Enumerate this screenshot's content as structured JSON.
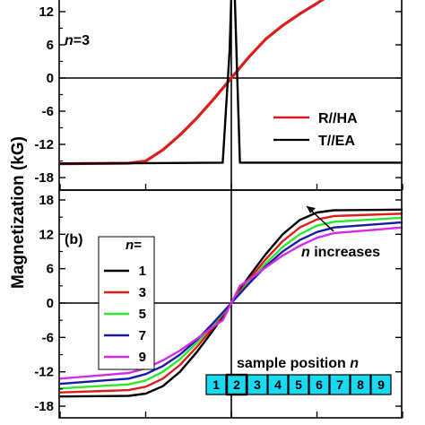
{
  "y_axis_title": "Magnetization  (kG)",
  "top_panel": {
    "label_n": "n",
    "label_eq": "=3",
    "legend": [
      {
        "label": "R//HA",
        "color": "#dd1c1c"
      },
      {
        "label": "T//EA",
        "color": "#000000"
      }
    ]
  },
  "bottom_panel": {
    "label": "(b)",
    "legend_title_n": "n",
    "legend_title_eq": "=",
    "annotation_n": "n",
    "annotation_rest": " increases",
    "sample_position_label": "sample position ",
    "sample_position_n": "n",
    "sample_boxes": [
      "1",
      "2",
      "3",
      "4",
      "5",
      "6",
      "7",
      "8",
      "9"
    ],
    "highlight_box": "2",
    "box_color": "#19d9f0"
  },
  "chart_data": [
    {
      "type": "line",
      "panel": "top",
      "ylabel": "Magnetization  (kG)",
      "xlim": [
        -1,
        1
      ],
      "ylim": [
        -19,
        15
      ],
      "yticks": [
        -18,
        -12,
        -6,
        0,
        6,
        12
      ],
      "grid": false,
      "legend_position": "right",
      "series": [
        {
          "name": "R//HA",
          "color": "#dd1c1c",
          "x": [
            -1.0,
            -0.6,
            -0.5,
            -0.4,
            -0.3,
            -0.2,
            -0.1,
            0.0,
            0.1,
            0.2,
            0.3,
            0.4,
            0.5,
            0.55
          ],
          "y": [
            -15.5,
            -15.4,
            -15.0,
            -13.0,
            -10.3,
            -7.2,
            -3.7,
            0.0,
            3.7,
            7.0,
            9.5,
            11.6,
            13.5,
            14.5
          ]
        },
        {
          "name": "T//EA",
          "color": "#000000",
          "x": [
            -1.0,
            -0.05,
            -0.03,
            -0.01,
            0.0,
            0.02,
            0.04,
            0.05,
            1.0
          ],
          "y": [
            -15.5,
            -15.3,
            -5.0,
            5.0,
            15.0,
            15.0,
            -5.0,
            -15.3,
            -15.3
          ]
        }
      ]
    },
    {
      "type": "line",
      "panel": "bottom",
      "ylabel": "Magnetization  (kG)",
      "xlim": [
        -1,
        1
      ],
      "ylim": [
        -19,
        19
      ],
      "yticks": [
        -18,
        -12,
        -6,
        0,
        6,
        12,
        18
      ],
      "grid": false,
      "legend_title": "n=",
      "legend_position": "left",
      "series": [
        {
          "name": "1",
          "color": "#000000",
          "x": [
            -1.0,
            -0.6,
            -0.5,
            -0.4,
            -0.3,
            -0.2,
            -0.1,
            0.0,
            0.1,
            0.2,
            0.3,
            0.4,
            0.5,
            0.6,
            1.0
          ],
          "y": [
            -16.3,
            -16.2,
            -15.8,
            -14.5,
            -12.0,
            -8.5,
            -4.5,
            0.0,
            4.5,
            8.5,
            12.0,
            14.5,
            15.8,
            16.2,
            16.3
          ]
        },
        {
          "name": "3",
          "color": "#dd1c1c",
          "x": [
            -1.0,
            -0.6,
            -0.5,
            -0.4,
            -0.3,
            -0.2,
            -0.1,
            0.0,
            0.1,
            0.2,
            0.3,
            0.4,
            0.5,
            0.6,
            1.0
          ],
          "y": [
            -15.6,
            -15.2,
            -14.6,
            -13.2,
            -10.8,
            -7.6,
            -4.0,
            0.0,
            4.0,
            7.6,
            10.8,
            13.2,
            14.6,
            15.2,
            15.6
          ]
        },
        {
          "name": "5",
          "color": "#2ee62e",
          "x": [
            -1.0,
            -0.6,
            -0.5,
            -0.4,
            -0.3,
            -0.2,
            -0.1,
            0.0,
            0.1,
            0.2,
            0.3,
            0.4,
            0.5,
            0.6,
            1.0
          ],
          "y": [
            -14.9,
            -14.2,
            -13.5,
            -12.0,
            -9.8,
            -6.9,
            -3.6,
            0.0,
            3.6,
            6.9,
            9.8,
            12.0,
            13.5,
            14.2,
            14.9
          ]
        },
        {
          "name": "7",
          "color": "#1a1aa6",
          "x": [
            -1.0,
            -0.6,
            -0.5,
            -0.4,
            -0.3,
            -0.2,
            -0.1,
            0.0,
            0.1,
            0.2,
            0.3,
            0.4,
            0.5,
            0.6,
            1.0
          ],
          "y": [
            -14.1,
            -13.2,
            -12.4,
            -11.0,
            -9.0,
            -6.4,
            -3.3,
            0.0,
            3.3,
            6.4,
            9.0,
            11.0,
            12.4,
            13.2,
            14.1
          ]
        },
        {
          "name": "9",
          "color": "#d62ae6",
          "x": [
            -1.0,
            -0.6,
            -0.5,
            -0.4,
            -0.3,
            -0.2,
            -0.1,
            -0.05,
            0.0,
            0.05,
            0.1,
            0.2,
            0.3,
            0.4,
            0.5,
            0.6,
            1.0
          ],
          "y": [
            -13.2,
            -12.2,
            -11.4,
            -10.0,
            -8.3,
            -6.2,
            -4.0,
            -3.0,
            0.0,
            3.0,
            4.0,
            6.2,
            8.3,
            10.0,
            11.4,
            12.2,
            13.2
          ]
        }
      ]
    }
  ]
}
